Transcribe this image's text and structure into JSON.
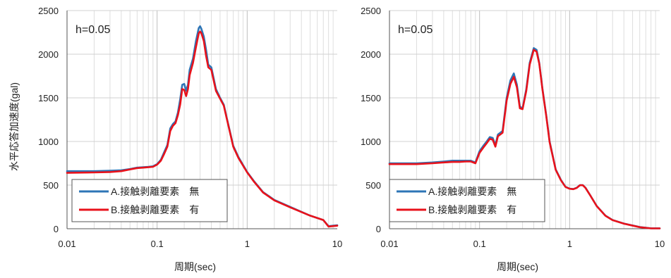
{
  "chart_data": [
    {
      "type": "line",
      "annotation": "h=0.05",
      "xlabel": "周期(sec)",
      "ylabel": "水平応答加速度(gal)",
      "xscale": "log",
      "xlim": [
        0.01,
        10
      ],
      "ylim": [
        0,
        2500
      ],
      "yticks": [
        0,
        500,
        1000,
        1500,
        2000,
        2500
      ],
      "xticks": [
        0.01,
        0.1,
        1,
        10
      ],
      "xtick_labels": [
        "0.01",
        "0.1",
        "1",
        "10"
      ],
      "grid": true,
      "legend": "bottom-left",
      "series": [
        {
          "name": "A.接触剥離要素　無",
          "color": "#2e75b6",
          "x": [
            0.01,
            0.02,
            0.03,
            0.04,
            0.05,
            0.06,
            0.07,
            0.08,
            0.09,
            0.1,
            0.11,
            0.12,
            0.13,
            0.14,
            0.15,
            0.16,
            0.17,
            0.18,
            0.19,
            0.2,
            0.21,
            0.22,
            0.23,
            0.25,
            0.27,
            0.29,
            0.3,
            0.31,
            0.33,
            0.35,
            0.37,
            0.4,
            0.45,
            0.5,
            0.55,
            0.6,
            0.7,
            0.8,
            1.0,
            1.2,
            1.5,
            2.0,
            3.0,
            5.0,
            7.0,
            8.0,
            10.0
          ],
          "y": [
            660,
            660,
            665,
            670,
            685,
            700,
            705,
            710,
            715,
            740,
            790,
            880,
            960,
            1150,
            1200,
            1230,
            1330,
            1480,
            1650,
            1660,
            1580,
            1650,
            1820,
            1950,
            2150,
            2300,
            2320,
            2290,
            2200,
            2050,
            1880,
            1850,
            1600,
            1500,
            1420,
            1250,
            950,
            820,
            650,
            540,
            420,
            330,
            250,
            150,
            100,
            30,
            40
          ]
        },
        {
          "name": "B.接触剥離要素　有",
          "color": "#e8121b",
          "x": [
            0.01,
            0.02,
            0.03,
            0.04,
            0.05,
            0.06,
            0.07,
            0.08,
            0.09,
            0.1,
            0.11,
            0.12,
            0.13,
            0.14,
            0.15,
            0.16,
            0.17,
            0.18,
            0.19,
            0.2,
            0.21,
            0.22,
            0.23,
            0.25,
            0.27,
            0.29,
            0.3,
            0.31,
            0.33,
            0.35,
            0.37,
            0.4,
            0.45,
            0.5,
            0.55,
            0.6,
            0.7,
            0.8,
            1.0,
            1.2,
            1.5,
            2.0,
            3.0,
            5.0,
            7.0,
            8.0,
            10.0
          ],
          "y": [
            640,
            645,
            650,
            660,
            680,
            695,
            700,
            705,
            710,
            735,
            780,
            860,
            940,
            1120,
            1180,
            1210,
            1300,
            1420,
            1600,
            1590,
            1520,
            1600,
            1760,
            1900,
            2080,
            2240,
            2260,
            2240,
            2150,
            1980,
            1850,
            1820,
            1580,
            1490,
            1410,
            1240,
            940,
            810,
            645,
            535,
            415,
            325,
            245,
            150,
            100,
            25,
            35
          ]
        }
      ]
    },
    {
      "type": "line",
      "annotation": "h=0.05",
      "xlabel": "周期(sec)",
      "ylabel": "",
      "xscale": "log",
      "xlim": [
        0.01,
        10
      ],
      "ylim": [
        0,
        2500
      ],
      "yticks": [
        0,
        500,
        1000,
        1500,
        2000,
        2500
      ],
      "ytick_labels": [
        "0",
        "500",
        "1000",
        "1500",
        "2000",
        "2500"
      ],
      "xticks": [
        0.01,
        0.1,
        1,
        10
      ],
      "xtick_labels": [
        "0.01",
        "0.1",
        "1",
        "10"
      ],
      "grid": true,
      "legend": "bottom-left",
      "series": [
        {
          "name": "A.接触剥離要素　無",
          "color": "#2e75b6",
          "x": [
            0.01,
            0.02,
            0.03,
            0.04,
            0.05,
            0.06,
            0.07,
            0.08,
            0.09,
            0.1,
            0.11,
            0.12,
            0.13,
            0.14,
            0.15,
            0.16,
            0.18,
            0.2,
            0.22,
            0.24,
            0.26,
            0.28,
            0.3,
            0.33,
            0.36,
            0.4,
            0.43,
            0.46,
            0.5,
            0.55,
            0.6,
            0.7,
            0.8,
            0.9,
            1.0,
            1.1,
            1.2,
            1.3,
            1.4,
            1.5,
            1.7,
            2.0,
            2.5,
            3.0,
            4.0,
            6.0,
            8.0,
            10.0
          ],
          "y": [
            750,
            750,
            760,
            770,
            780,
            780,
            780,
            780,
            760,
            890,
            950,
            1000,
            1050,
            1040,
            960,
            1080,
            1120,
            1500,
            1700,
            1780,
            1650,
            1400,
            1380,
            1600,
            1900,
            2070,
            2050,
            1900,
            1600,
            1300,
            1000,
            680,
            560,
            480,
            460,
            455,
            470,
            500,
            500,
            470,
            380,
            260,
            150,
            100,
            60,
            20,
            5,
            5
          ]
        },
        {
          "name": "B.接触剥離要素　有",
          "color": "#e8121b",
          "x": [
            0.01,
            0.02,
            0.03,
            0.04,
            0.05,
            0.06,
            0.07,
            0.08,
            0.09,
            0.1,
            0.11,
            0.12,
            0.13,
            0.14,
            0.15,
            0.16,
            0.18,
            0.2,
            0.22,
            0.24,
            0.26,
            0.28,
            0.3,
            0.33,
            0.36,
            0.4,
            0.43,
            0.46,
            0.5,
            0.55,
            0.6,
            0.7,
            0.8,
            0.9,
            1.0,
            1.1,
            1.2,
            1.3,
            1.4,
            1.5,
            1.7,
            2.0,
            2.5,
            3.0,
            4.0,
            6.0,
            8.0,
            10.0
          ],
          "y": [
            740,
            740,
            750,
            760,
            765,
            765,
            770,
            770,
            750,
            870,
            930,
            980,
            1030,
            1020,
            940,
            1060,
            1100,
            1470,
            1660,
            1740,
            1620,
            1380,
            1370,
            1580,
            1880,
            2050,
            2030,
            1890,
            1590,
            1290,
            990,
            675,
            555,
            478,
            458,
            453,
            468,
            498,
            498,
            468,
            378,
            258,
            148,
            98,
            58,
            18,
            4,
            4
          ]
        }
      ]
    }
  ]
}
